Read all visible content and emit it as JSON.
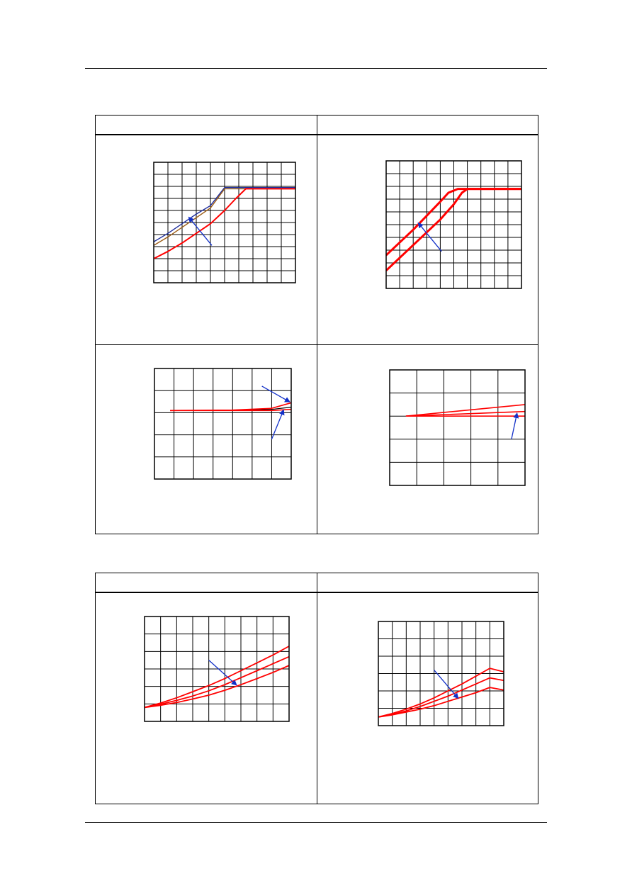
{
  "page": {
    "header_rule": true,
    "footer_rule": true
  },
  "tables": [
    {
      "id": "table-1",
      "header_cells": [
        "",
        ""
      ],
      "rows": 2
    },
    {
      "id": "table-2",
      "header_cells": [
        "",
        ""
      ],
      "rows": 1
    }
  ],
  "colors": {
    "red": "#ff0000",
    "navy": "#1c2c9c",
    "blue_arrow": "#1230c8",
    "brown": "#9a5a12",
    "grid": "#000000"
  },
  "chart_data": [
    {
      "id": "chart-1",
      "type": "line",
      "grid": true,
      "xlim": [
        0,
        10
      ],
      "ylim": [
        0,
        10
      ],
      "grid_cols": 10,
      "grid_rows": 10,
      "series": [
        {
          "color": "#1c2c9c",
          "width": 1.4,
          "points": [
            [
              0,
              3.4
            ],
            [
              1,
              4.1
            ],
            [
              2,
              4.9
            ],
            [
              3,
              5.7
            ],
            [
              4,
              6.4
            ],
            [
              5,
              7.9
            ],
            [
              10,
              7.9
            ]
          ]
        },
        {
          "color": "#9a5a12",
          "width": 1.4,
          "points": [
            [
              0,
              3.1
            ],
            [
              1,
              3.8
            ],
            [
              2,
              4.6
            ],
            [
              3,
              5.4
            ],
            [
              4,
              6.2
            ],
            [
              5,
              7.8
            ],
            [
              10,
              7.8
            ]
          ]
        },
        {
          "color": "#ff0000",
          "width": 2,
          "points": [
            [
              0,
              2.0
            ],
            [
              1,
              2.6
            ],
            [
              2,
              3.3
            ],
            [
              3,
              4.1
            ],
            [
              4,
              4.9
            ],
            [
              5,
              6.0
            ],
            [
              5.8,
              7.0
            ],
            [
              6.5,
              7.8
            ],
            [
              10,
              7.8
            ]
          ]
        }
      ],
      "arrows": [
        {
          "from": [
            4.1,
            3.1
          ],
          "to": [
            2.5,
            5.4
          ],
          "color": "#1230c8"
        }
      ]
    },
    {
      "id": "chart-2",
      "type": "line",
      "grid": true,
      "xlim": [
        0,
        10
      ],
      "ylim": [
        0,
        10
      ],
      "grid_cols": 10,
      "grid_rows": 10,
      "series": [
        {
          "color": "#ff0000",
          "width": 3,
          "points": [
            [
              0,
              2.6
            ],
            [
              1,
              3.6
            ],
            [
              2,
              4.6
            ],
            [
              3,
              5.7
            ],
            [
              4,
              6.8
            ],
            [
              4.6,
              7.5
            ],
            [
              5.3,
              7.8
            ],
            [
              10,
              7.8
            ]
          ]
        },
        {
          "color": "#ff0000",
          "width": 3,
          "points": [
            [
              0,
              1.4
            ],
            [
              1,
              2.4
            ],
            [
              2,
              3.4
            ],
            [
              3,
              4.4
            ],
            [
              4,
              5.4
            ],
            [
              5,
              6.6
            ],
            [
              5.6,
              7.5
            ],
            [
              6,
              7.8
            ],
            [
              10,
              7.8
            ]
          ]
        }
      ],
      "arrows": [
        {
          "from": [
            4.1,
            2.9
          ],
          "to": [
            2.4,
            5.1
          ],
          "color": "#1230c8"
        }
      ]
    },
    {
      "id": "chart-3",
      "type": "line",
      "grid": true,
      "xlim": [
        0,
        7
      ],
      "ylim": [
        0,
        5
      ],
      "grid_cols": 7,
      "grid_rows": 5,
      "series": [
        {
          "color": "#000000",
          "width": 1.2,
          "points": [
            [
              0.8,
              3.1
            ],
            [
              4,
              3.1
            ],
            [
              6,
              3.15
            ],
            [
              7,
              3.25
            ]
          ]
        },
        {
          "color": "#ff0000",
          "width": 1.6,
          "points": [
            [
              0.8,
              3.1
            ],
            [
              4,
              3.12
            ],
            [
              6,
              3.2
            ],
            [
              7,
              3.45
            ]
          ]
        },
        {
          "color": "#ff0000",
          "width": 1.6,
          "points": [
            [
              0.8,
              3.1
            ],
            [
              4,
              3.1
            ],
            [
              6,
              3.1
            ],
            [
              7,
              3.15
            ]
          ]
        }
      ],
      "arrows": [
        {
          "from": [
            5.5,
            4.2
          ],
          "to": [
            6.9,
            3.5
          ],
          "color": "#1230c8"
        },
        {
          "from": [
            6.0,
            1.8
          ],
          "to": [
            6.6,
            3.1
          ],
          "color": "#1230c8"
        }
      ]
    },
    {
      "id": "chart-4",
      "type": "line",
      "grid": true,
      "xlim": [
        0,
        5
      ],
      "ylim": [
        0,
        5
      ],
      "grid_cols": 5,
      "grid_rows": 5,
      "series": [
        {
          "color": "#ff0000",
          "width": 1.6,
          "points": [
            [
              0.6,
              3.0
            ],
            [
              5,
              3.5
            ]
          ]
        },
        {
          "color": "#ff0000",
          "width": 1.6,
          "points": [
            [
              0.6,
              3.0
            ],
            [
              5,
              3.2
            ]
          ]
        },
        {
          "color": "#ff0000",
          "width": 1.6,
          "points": [
            [
              0.6,
              3.0
            ],
            [
              5,
              3.0
            ]
          ]
        }
      ],
      "arrows": [
        {
          "from": [
            4.5,
            2.0
          ],
          "to": [
            4.7,
            3.1
          ],
          "color": "#1230c8"
        }
      ]
    },
    {
      "id": "chart-5",
      "type": "line",
      "grid": true,
      "xlim": [
        0,
        9
      ],
      "ylim": [
        0,
        6
      ],
      "grid_cols": 9,
      "grid_rows": 6,
      "series": [
        {
          "color": "#ff0000",
          "width": 1.8,
          "points": [
            [
              0,
              0.8
            ],
            [
              1,
              1.05
            ],
            [
              2,
              1.35
            ],
            [
              3,
              1.7
            ],
            [
              4,
              2.05
            ],
            [
              5,
              2.45
            ],
            [
              6,
              2.9
            ],
            [
              7,
              3.35
            ],
            [
              8,
              3.8
            ],
            [
              9,
              4.3
            ]
          ]
        },
        {
          "color": "#ff0000",
          "width": 1.8,
          "points": [
            [
              0,
              0.8
            ],
            [
              1,
              0.98
            ],
            [
              2,
              1.2
            ],
            [
              3,
              1.45
            ],
            [
              4,
              1.75
            ],
            [
              5,
              2.1
            ],
            [
              6,
              2.5
            ],
            [
              7,
              2.9
            ],
            [
              8,
              3.3
            ],
            [
              9,
              3.7
            ]
          ]
        },
        {
          "color": "#ff0000",
          "width": 1.8,
          "points": [
            [
              0,
              0.8
            ],
            [
              1,
              0.92
            ],
            [
              2,
              1.08
            ],
            [
              3,
              1.28
            ],
            [
              4,
              1.5
            ],
            [
              5,
              1.78
            ],
            [
              6,
              2.1
            ],
            [
              7,
              2.45
            ],
            [
              8,
              2.8
            ],
            [
              9,
              3.2
            ]
          ]
        }
      ],
      "arrows": [
        {
          "from": [
            4.0,
            3.5
          ],
          "to": [
            5.7,
            2.1
          ],
          "color": "#1230c8"
        }
      ]
    },
    {
      "id": "chart-6",
      "type": "line",
      "grid": true,
      "xlim": [
        0,
        9
      ],
      "ylim": [
        0,
        6
      ],
      "grid_cols": 9,
      "grid_rows": 6,
      "series": [
        {
          "color": "#ff0000",
          "width": 1.8,
          "points": [
            [
              0,
              0.5
            ],
            [
              1,
              0.7
            ],
            [
              2,
              0.95
            ],
            [
              3,
              1.25
            ],
            [
              4,
              1.6
            ],
            [
              5,
              2.0
            ],
            [
              6,
              2.4
            ],
            [
              7,
              2.85
            ],
            [
              8,
              3.3
            ],
            [
              9,
              3.1
            ]
          ]
        },
        {
          "color": "#ff0000",
          "width": 1.8,
          "points": [
            [
              0,
              0.5
            ],
            [
              1,
              0.65
            ],
            [
              2,
              0.85
            ],
            [
              3,
              1.1
            ],
            [
              4,
              1.4
            ],
            [
              5,
              1.7
            ],
            [
              6,
              2.05
            ],
            [
              7,
              2.4
            ],
            [
              8,
              2.75
            ],
            [
              9,
              2.6
            ]
          ]
        },
        {
          "color": "#ff0000",
          "width": 1.8,
          "points": [
            [
              0,
              0.5
            ],
            [
              1,
              0.62
            ],
            [
              2,
              0.78
            ],
            [
              3,
              0.95
            ],
            [
              4,
              1.15
            ],
            [
              5,
              1.4
            ],
            [
              6,
              1.65
            ],
            [
              7,
              1.9
            ],
            [
              8,
              2.2
            ],
            [
              9,
              2.05
            ]
          ]
        }
      ],
      "arrows": [
        {
          "from": [
            4.0,
            3.2
          ],
          "to": [
            5.7,
            1.6
          ],
          "color": "#1230c8"
        }
      ]
    }
  ]
}
